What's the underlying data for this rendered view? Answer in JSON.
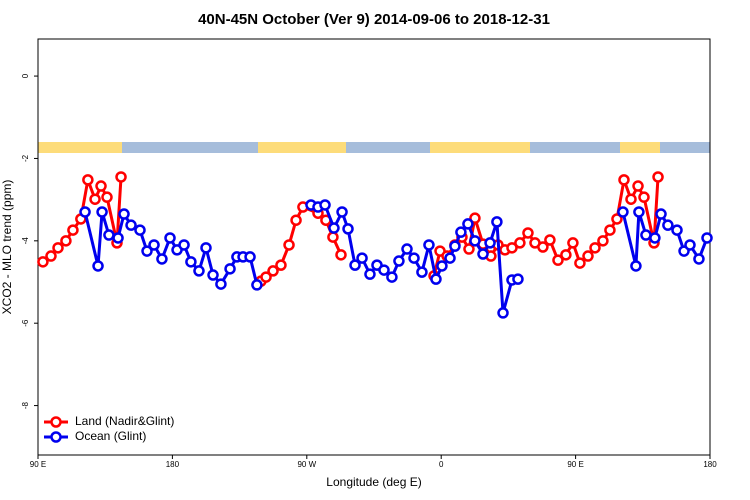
{
  "chart_data": {
    "type": "line",
    "title": "40N-45N October (Ver 9)   2014-09-06 to 2018-12-31",
    "xlabel": "Longitude (deg E)",
    "ylabel": "XCO2 - MLO trend (ppm)",
    "xlim": [
      90,
      540
    ],
    "ylim": [
      -9.2,
      0.9
    ],
    "xticks": [
      {
        "value": 90,
        "label": "90 E"
      },
      {
        "value": 180,
        "label": "180"
      },
      {
        "value": 270,
        "label": "90 W"
      },
      {
        "value": 360,
        "label": "0"
      },
      {
        "value": 450,
        "label": "90 E"
      },
      {
        "value": 540,
        "label": "180"
      }
    ],
    "yticks": [
      0,
      -2,
      -4,
      -6,
      -8
    ],
    "legend": "bottom-left",
    "series": [
      {
        "name": "Land (Nadir&Glint)",
        "color": "#ff0000",
        "x": [
          93.3,
          98.7,
          103.4,
          108.7,
          113.4,
          118.7,
          123.4,
          128.2,
          132.2,
          136.2,
          142.9,
          145.6,
          null,
          239.3,
          242.7,
          247.4,
          252.7,
          258.1,
          262.8,
          267.4,
          277.5,
          282.8,
          287.5,
          292.9,
          null,
          355.2,
          359.2,
          363.9,
          369.2,
          373.9,
          378.6,
          382.6,
          388.0,
          393.3,
          398.0,
          402.7,
          407.4,
          412.7,
          418.1,
          422.8,
          428.1,
          432.8,
          438.2,
          443.5,
          448.2,
          452.9,
          458.3,
          463.0,
          468.3,
          473.0,
          477.7,
          482.4,
          487.1,
          491.8,
          495.8,
          502.5,
          505.2
        ],
        "values": [
          -4.51,
          -4.37,
          -4.17,
          -4.0,
          -3.74,
          -3.47,
          -2.52,
          -2.99,
          -2.67,
          -2.94,
          -4.05,
          -2.45,
          null,
          -4.98,
          -4.88,
          -4.73,
          -4.59,
          -4.1,
          -3.5,
          -3.18,
          -3.33,
          -3.5,
          -3.91,
          -4.34,
          null,
          -4.85,
          -4.25,
          -4.37,
          -4.1,
          -3.91,
          -4.2,
          -3.45,
          -4.08,
          -4.37,
          -4.1,
          -4.22,
          -4.17,
          -4.05,
          -3.81,
          -4.05,
          -4.15,
          -3.98,
          -4.47,
          -4.34,
          -4.05,
          -4.54,
          -4.37,
          -4.17,
          -4.0,
          -3.74,
          -3.47,
          -2.52,
          -2.99,
          -2.67,
          -2.94,
          -4.05,
          -2.45
        ]
      },
      {
        "name": "Ocean (Glint)",
        "color": "#0000ee",
        "x": [
          121.5,
          130.2,
          132.9,
          137.5,
          143.6,
          147.6,
          152.3,
          158.3,
          163.0,
          167.7,
          173.0,
          178.4,
          183.1,
          187.8,
          192.4,
          197.8,
          202.5,
          207.2,
          212.5,
          218.6,
          223.2,
          227.3,
          232.0,
          236.6,
          null,
          272.8,
          277.5,
          282.2,
          288.2,
          293.6,
          297.6,
          302.3,
          307.0,
          312.3,
          317.0,
          321.7,
          327.0,
          331.7,
          337.1,
          341.8,
          347.1,
          351.8,
          356.5,
          360.5,
          365.9,
          369.2,
          373.2,
          377.9,
          382.6,
          388.0,
          392.7,
          397.3,
          401.4,
          407.4,
          411.4,
          null,
          481.7,
          490.4,
          492.4,
          497.1,
          503.1,
          507.2,
          511.8,
          517.9,
          522.6,
          526.6,
          532.6,
          538.0
        ],
        "values": [
          -3.3,
          -4.61,
          -3.3,
          -3.86,
          -3.93,
          -3.35,
          -3.62,
          -3.74,
          -4.25,
          -4.1,
          -4.44,
          -3.93,
          -4.22,
          -4.1,
          -4.51,
          -4.73,
          -4.17,
          -4.83,
          -5.05,
          -4.68,
          -4.39,
          -4.39,
          -4.39,
          -5.07,
          null,
          -3.13,
          -3.18,
          -3.13,
          -3.69,
          -3.3,
          -3.71,
          -4.59,
          -4.42,
          -4.81,
          -4.59,
          -4.71,
          -4.88,
          -4.49,
          -4.2,
          -4.42,
          -4.76,
          -4.1,
          -4.93,
          -4.61,
          -4.42,
          -4.13,
          -3.79,
          -3.59,
          -4.0,
          -4.32,
          -4.05,
          -3.54,
          -5.75,
          -4.95,
          -4.93,
          null,
          -3.3,
          -4.61,
          -3.3,
          -3.86,
          -3.93,
          -3.35,
          -3.62,
          -3.74,
          -4.25,
          -4.1,
          -4.44,
          -3.93
        ]
      }
    ]
  }
}
